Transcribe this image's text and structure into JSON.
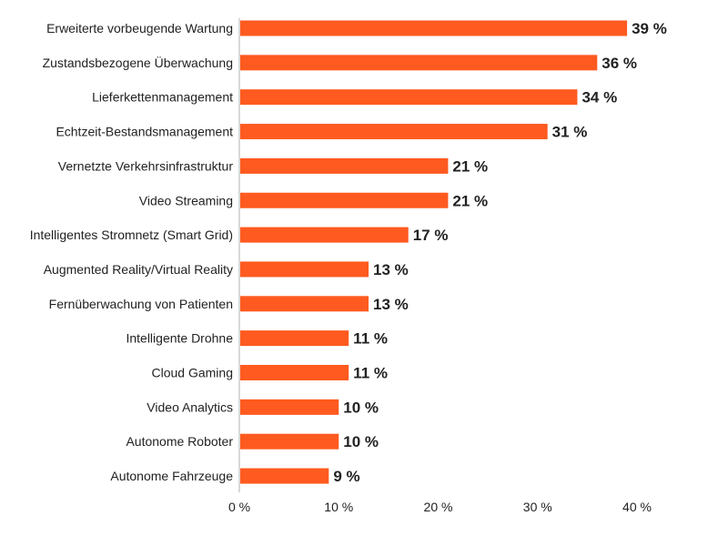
{
  "chart_data": {
    "type": "bar",
    "orientation": "horizontal",
    "title": "",
    "xlabel": "",
    "ylabel": "",
    "xlim": [
      0,
      40
    ],
    "grid": false,
    "legend": "none",
    "bar_color": "#ff5a1f",
    "value_suffix": " %",
    "categories": [
      "Erweiterte vorbeugende Wartung",
      "Zustandsbezogene Überwachung",
      "Lieferkettenmanagement",
      "Echtzeit-Bestandsmanagement",
      "Vernetzte Verkehrsinfrastruktur",
      "Video Streaming",
      "Intelligentes Stromnetz (Smart Grid)",
      "Augmented Reality/Virtual Reality",
      "Fernüberwachung von Patienten",
      "Intelligente Drohne",
      "Cloud Gaming",
      "Video Analytics",
      "Autonome Roboter",
      "Autonome Fahrzeuge"
    ],
    "values": [
      39,
      36,
      34,
      31,
      21,
      21,
      17,
      13,
      13,
      11,
      11,
      10,
      10,
      9
    ],
    "value_labels": [
      "39 %",
      "36 %",
      "34 %",
      "31 %",
      "21 %",
      "21 %",
      "17 %",
      "13 %",
      "13 %",
      "11 %",
      "11 %",
      "10 %",
      "10 %",
      "9 %"
    ],
    "ticks": [
      0,
      10,
      20,
      30,
      40
    ],
    "tick_labels": [
      "0 %",
      "10 %",
      "20 %",
      "30 %",
      "40 %"
    ]
  }
}
